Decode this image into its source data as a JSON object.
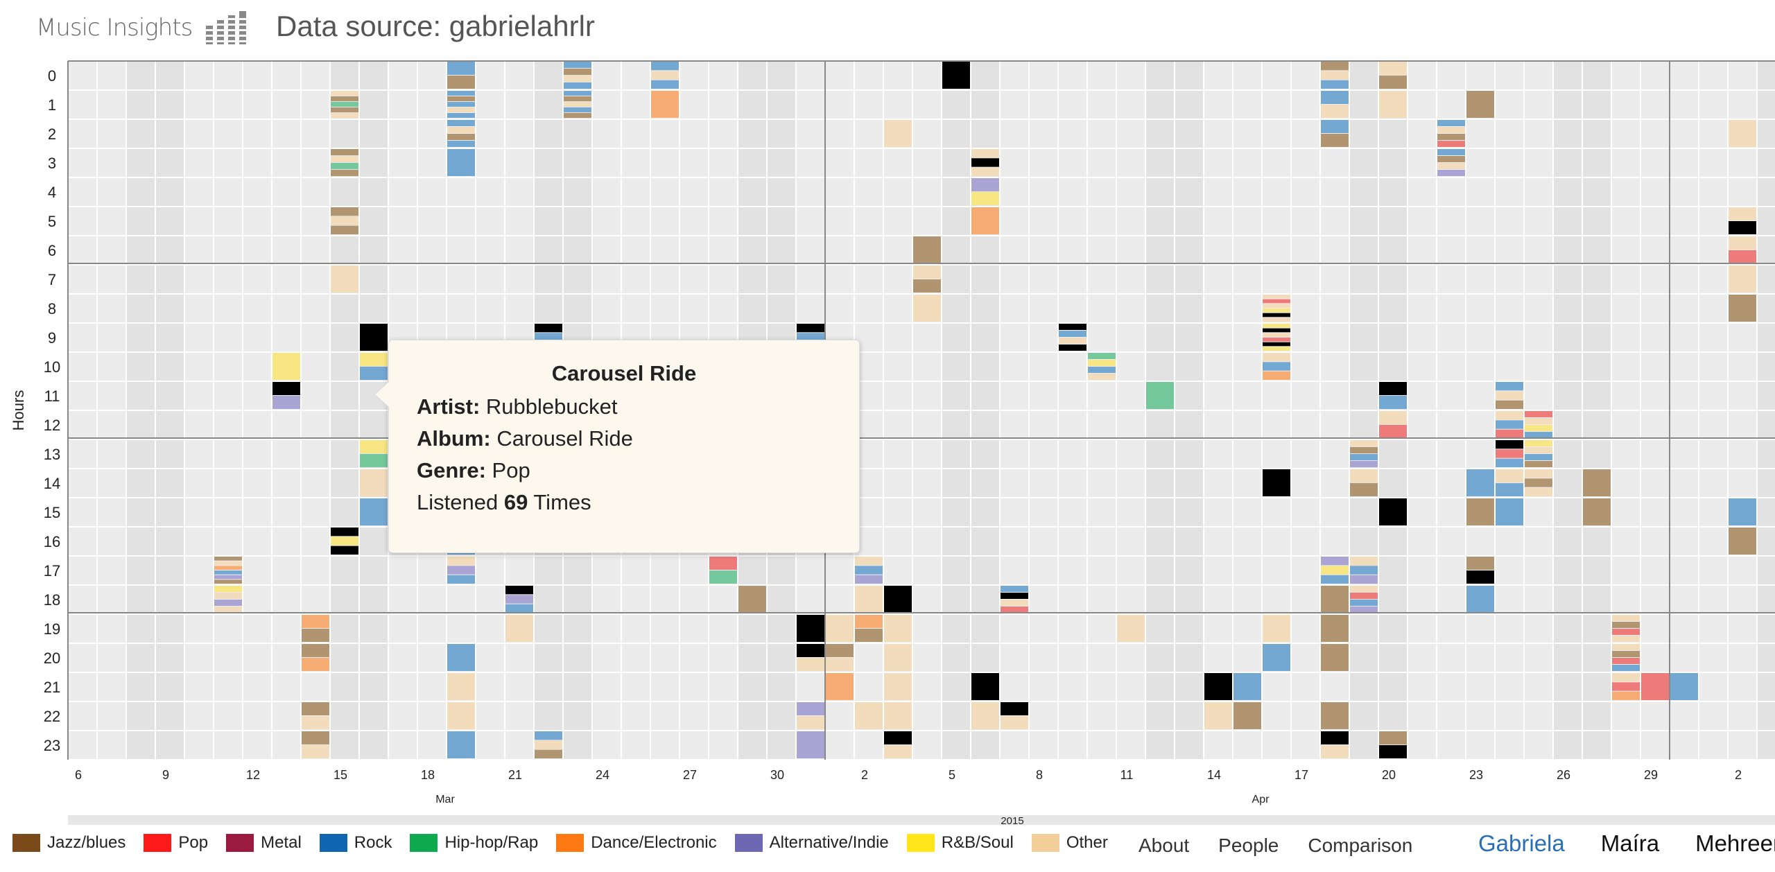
{
  "header": {
    "logo_text": "Music Insights",
    "logo_icon": "equalizer-bars-icon",
    "data_source": "Data source: gabrielahrlr"
  },
  "chart_data": {
    "type": "heatmap",
    "ylabel": "Hours",
    "y_ticks": [
      "0",
      "1",
      "2",
      "3",
      "4",
      "5",
      "6",
      "7",
      "8",
      "9",
      "10",
      "11",
      "12",
      "13",
      "14",
      "15",
      "16",
      "17",
      "18",
      "19",
      "20",
      "21",
      "22",
      "23"
    ],
    "x_day_ticks": [
      "6",
      "9",
      "12",
      "15",
      "18",
      "21",
      "24",
      "27",
      "30",
      "2",
      "5",
      "8",
      "11",
      "14",
      "17",
      "20",
      "23",
      "26",
      "29",
      "2"
    ],
    "x_month_labels": [
      "Mar",
      "Apr"
    ],
    "x_year_label": "2015",
    "x_range": [
      "2015-03-05",
      "2015-05-03"
    ],
    "genres": [
      {
        "name": "Jazz/blues",
        "color": "#b19470"
      },
      {
        "name": "Pop",
        "color": "#ef7a7a"
      },
      {
        "name": "Metal",
        "color": "#c76a8a"
      },
      {
        "name": "Rock",
        "color": "#73a8d3"
      },
      {
        "name": "Hip-hop/Rap",
        "color": "#74c99c"
      },
      {
        "name": "Dance/Electronic",
        "color": "#f7ac74"
      },
      {
        "name": "Alternative/Indie",
        "color": "#a9a4d3"
      },
      {
        "name": "R&B/Soul",
        "color": "#f7e682"
      },
      {
        "name": "Other",
        "color": "#f2dcbc"
      }
    ],
    "blocks": [
      [
        5,
        17,
        6,
        "0,8,5,3,6"
      ],
      [
        5,
        18,
        3,
        "7,8,6,8"
      ],
      [
        7,
        10,
        1,
        "7"
      ],
      [
        7,
        11,
        1,
        "9,6"
      ],
      [
        8,
        19,
        1,
        "5,0"
      ],
      [
        8,
        20,
        1,
        "0,5"
      ],
      [
        8,
        22,
        1,
        "0,8"
      ],
      [
        8,
        23,
        1,
        "0,8"
      ],
      [
        9,
        1,
        3,
        "8,0,4,0,8"
      ],
      [
        9,
        3,
        4,
        "0,8,4,0"
      ],
      [
        9,
        5,
        3,
        "0,8,0"
      ],
      [
        9,
        7,
        1,
        "8"
      ],
      [
        9,
        16,
        1,
        "9,7,9"
      ],
      [
        10,
        9,
        1,
        "9"
      ],
      [
        10,
        10,
        1,
        "7,3"
      ],
      [
        10,
        13,
        1,
        "7,4"
      ],
      [
        10,
        14,
        1,
        "8"
      ],
      [
        10,
        15,
        1,
        "3"
      ],
      [
        13,
        0,
        1,
        "3,0"
      ],
      [
        13,
        1,
        3,
        "3,0,3,8,3"
      ],
      [
        13,
        2,
        3,
        "3,8,0,3"
      ],
      [
        13,
        3,
        1,
        "3"
      ],
      [
        13,
        13,
        5,
        "8,3,8,3,0"
      ],
      [
        13,
        14,
        4,
        "3,8,0,3,8"
      ],
      [
        13,
        15,
        4,
        "3,0,8,3,0,8"
      ],
      [
        13,
        16,
        4,
        "3,8,0,3"
      ],
      [
        13,
        17,
        3,
        "8,6,3"
      ],
      [
        13,
        20,
        1,
        "3"
      ],
      [
        13,
        21,
        1,
        "8"
      ],
      [
        13,
        22,
        1,
        "8"
      ],
      [
        13,
        23,
        1,
        "3"
      ],
      [
        15,
        11,
        1,
        "9"
      ],
      [
        15,
        12,
        2,
        "9,7"
      ],
      [
        15,
        14,
        1,
        "9"
      ],
      [
        15,
        18,
        3,
        "9,6,3"
      ],
      [
        15,
        19,
        1,
        "8"
      ],
      [
        16,
        9,
        3,
        "9,3,8"
      ],
      [
        16,
        23,
        3,
        "3,8,0"
      ],
      [
        17,
        0,
        4,
        "3,0,8,3"
      ],
      [
        17,
        1,
        4,
        "3,0,8,3,0"
      ],
      [
        20,
        0,
        3,
        "3,8,3"
      ],
      [
        20,
        1,
        1,
        "5"
      ],
      [
        22,
        17,
        2,
        "1,4"
      ],
      [
        23,
        18,
        1,
        "0"
      ],
      [
        25,
        9,
        3,
        "9,3"
      ],
      [
        25,
        19,
        1,
        "9"
      ],
      [
        25,
        20,
        2,
        "9,8"
      ],
      [
        25,
        22,
        2,
        "6,8"
      ],
      [
        25,
        23,
        1,
        "6"
      ],
      [
        26,
        19,
        1,
        "8"
      ],
      [
        26,
        20,
        2,
        "0,8"
      ],
      [
        26,
        21,
        1,
        "5"
      ],
      [
        27,
        17,
        3,
        "8,3,6"
      ],
      [
        27,
        18,
        1,
        "8"
      ],
      [
        27,
        19,
        2,
        "5,0"
      ],
      [
        27,
        22,
        1,
        "8"
      ],
      [
        28,
        2,
        1,
        "8"
      ],
      [
        28,
        18,
        1,
        "9"
      ],
      [
        28,
        19,
        1,
        "8"
      ],
      [
        28,
        20,
        1,
        "8"
      ],
      [
        28,
        21,
        1,
        "8"
      ],
      [
        28,
        22,
        1,
        "8"
      ],
      [
        28,
        23,
        2,
        "9,8"
      ],
      [
        29,
        6,
        1,
        "0"
      ],
      [
        29,
        7,
        2,
        "8,0"
      ],
      [
        29,
        8,
        1,
        "8"
      ],
      [
        30,
        0,
        1,
        "9"
      ],
      [
        31,
        3,
        3,
        "8,9,8"
      ],
      [
        31,
        4,
        2,
        "6,7"
      ],
      [
        31,
        5,
        1,
        "5"
      ],
      [
        31,
        21,
        1,
        "9"
      ],
      [
        31,
        22,
        1,
        "8"
      ],
      [
        32,
        18,
        4,
        "3,9,8,1"
      ],
      [
        32,
        22,
        2,
        "9,8"
      ],
      [
        34,
        9,
        4,
        "9,3,8,9"
      ],
      [
        35,
        10,
        4,
        "4,7,3,8"
      ],
      [
        36,
        19,
        1,
        "8"
      ],
      [
        37,
        11,
        1,
        "4"
      ],
      [
        39,
        21,
        1,
        "9"
      ],
      [
        39,
        22,
        1,
        "8"
      ],
      [
        40,
        21,
        1,
        "3"
      ],
      [
        40,
        22,
        1,
        "0"
      ],
      [
        41,
        8,
        6,
        "8,1,8,7,9"
      ],
      [
        41,
        9,
        6,
        "7,9,8,1,9"
      ],
      [
        41,
        10,
        3,
        "8,3,5"
      ],
      [
        41,
        14,
        1,
        "9"
      ],
      [
        41,
        19,
        1,
        "8"
      ],
      [
        41,
        20,
        1,
        "3"
      ],
      [
        43,
        0,
        3,
        "0,8,3"
      ],
      [
        43,
        1,
        2,
        "3,8"
      ],
      [
        43,
        2,
        2,
        "3,0"
      ],
      [
        43,
        17,
        3,
        "6,7,3"
      ],
      [
        43,
        18,
        1,
        "0"
      ],
      [
        43,
        19,
        1,
        "0"
      ],
      [
        43,
        20,
        1,
        "0"
      ],
      [
        43,
        22,
        1,
        "0"
      ],
      [
        43,
        23,
        2,
        "9,8"
      ],
      [
        44,
        13,
        4,
        "8,0,3,6"
      ],
      [
        44,
        14,
        2,
        "8,0"
      ],
      [
        44,
        17,
        3,
        "8,3,6"
      ],
      [
        44,
        18,
        4,
        "8,1,3,6"
      ],
      [
        45,
        0,
        2,
        "8,0"
      ],
      [
        45,
        1,
        1,
        "8"
      ],
      [
        45,
        11,
        2,
        "9,3"
      ],
      [
        45,
        12,
        2,
        "8,1"
      ],
      [
        45,
        15,
        1,
        "9"
      ],
      [
        45,
        23,
        2,
        "0,9"
      ],
      [
        47,
        2,
        4,
        "3,8,0,1"
      ],
      [
        47,
        3,
        4,
        "3,0,8,6"
      ],
      [
        48,
        1,
        1,
        "0"
      ],
      [
        48,
        14,
        1,
        "3"
      ],
      [
        48,
        15,
        1,
        "0"
      ],
      [
        48,
        17,
        2,
        "0,9"
      ],
      [
        48,
        18,
        1,
        "3"
      ],
      [
        49,
        11,
        3,
        "3,8,0"
      ],
      [
        49,
        12,
        3,
        "8,3,1"
      ],
      [
        49,
        13,
        3,
        "9,1,3"
      ],
      [
        49,
        14,
        2,
        "8,3"
      ],
      [
        49,
        15,
        1,
        "3"
      ],
      [
        50,
        12,
        4,
        "1,8,7,3"
      ],
      [
        50,
        13,
        4,
        "7,8,3,0"
      ],
      [
        50,
        14,
        3,
        "8,0,8"
      ],
      [
        52,
        14,
        1,
        "0"
      ],
      [
        52,
        15,
        1,
        "0"
      ],
      [
        53,
        19,
        4,
        "8,0,1,8"
      ],
      [
        53,
        20,
        4,
        "8,0,1,3"
      ],
      [
        53,
        21,
        3,
        "8,1,5"
      ],
      [
        54,
        21,
        1,
        "1"
      ],
      [
        55,
        21,
        1,
        "3"
      ],
      [
        57,
        2,
        1,
        "8"
      ],
      [
        57,
        5,
        2,
        "8,9"
      ],
      [
        57,
        6,
        2,
        "8,1"
      ],
      [
        57,
        7,
        1,
        "8"
      ],
      [
        57,
        8,
        1,
        "0"
      ],
      [
        57,
        15,
        1,
        "3"
      ],
      [
        57,
        16,
        1,
        "0"
      ]
    ]
  },
  "tooltip": {
    "title": "Carousel Ride",
    "artist_label": "Artist:",
    "artist": "Rubblebucket",
    "album_label": "Album:",
    "album": "Carousel Ride",
    "genre_label": "Genre:",
    "genre": "Pop",
    "listened_prefix": "Listened",
    "listened_count": "69",
    "listened_suffix": "Times"
  },
  "legend": [
    "Jazz/blues",
    "Pop",
    "Metal",
    "Rock",
    "Hip-hop/Rap",
    "Dance/Electronic",
    "Alternative/Indie",
    "R&B/Soul",
    "Other"
  ],
  "legend_colors": [
    "#7a4a1a",
    "#ff1a1a",
    "#9b1b40",
    "#0f66b0",
    "#0ea84f",
    "#ff7a12",
    "#6e67b4",
    "#ffe51a",
    "#f2cf9a"
  ],
  "nav": {
    "about": "About",
    "people": "People",
    "comparison": "Comparison"
  },
  "users": {
    "gabriela": "Gabriela",
    "maira": "Maíra",
    "mehreen": "Mehreen"
  }
}
